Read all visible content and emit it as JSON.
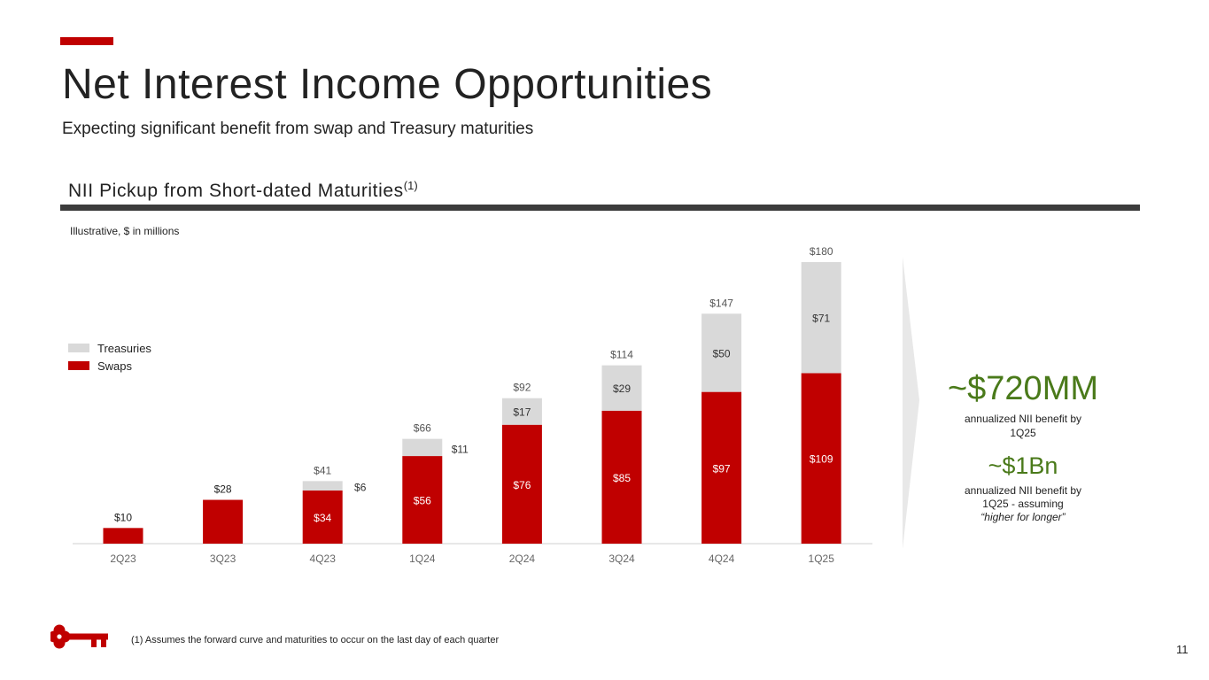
{
  "header": {
    "title": "Net Interest Income Opportunities",
    "subtitle": "Expecting significant benefit from swap and Treasury maturities",
    "section_title": "NII Pickup from Short-dated Maturities",
    "section_footnote_ref": "(1)",
    "units_note": "Illustrative, $ in millions"
  },
  "colors": {
    "brand_red": "#c00000",
    "treasuries_gray": "#d9d9d9",
    "callout_green": "#4a7a1a",
    "rule_dark": "#3c3c3c"
  },
  "chart_data": {
    "type": "bar",
    "stacked": true,
    "categories": [
      "2Q23",
      "3Q23",
      "4Q23",
      "1Q24",
      "2Q24",
      "3Q24",
      "4Q24",
      "1Q25"
    ],
    "series": [
      {
        "name": "Swaps",
        "color": "#c00000",
        "values": [
          10,
          28,
          34,
          56,
          76,
          85,
          97,
          109
        ]
      },
      {
        "name": "Treasuries",
        "color": "#d9d9d9",
        "values": [
          0,
          0,
          6,
          11,
          17,
          29,
          50,
          71
        ]
      }
    ],
    "totals": [
      10,
      28,
      41,
      66,
      92,
      114,
      147,
      180
    ],
    "segment_labels": {
      "swaps": [
        "",
        "",
        "$34",
        "$56",
        "$76",
        "$85",
        "$97",
        "$109"
      ],
      "treasuries": [
        "",
        "",
        "$6",
        "$11",
        "$17",
        "$29",
        "$50",
        "$71"
      ]
    },
    "total_labels": [
      "$10",
      "$28",
      "$41",
      "$66",
      "$92",
      "$114",
      "$147",
      "$180"
    ],
    "ylim": [
      0,
      180
    ],
    "grid": false,
    "legend_placement": "top-left",
    "legend": [
      {
        "label": "Treasuries",
        "color": "#d9d9d9"
      },
      {
        "label": "Swaps",
        "color": "#c00000"
      }
    ]
  },
  "callouts": {
    "big_value": "~$720MM",
    "big_note": "annualized NII benefit by 1Q25",
    "small_value": "~$1Bn",
    "small_note": "annualized NII benefit by 1Q25 - assuming",
    "small_note_emphasis": "“higher for longer”"
  },
  "footer": {
    "footnote": "(1) Assumes the forward curve and maturities to occur on the last day of each quarter",
    "page_number": "11",
    "logo_icon": "key-logo-icon"
  }
}
